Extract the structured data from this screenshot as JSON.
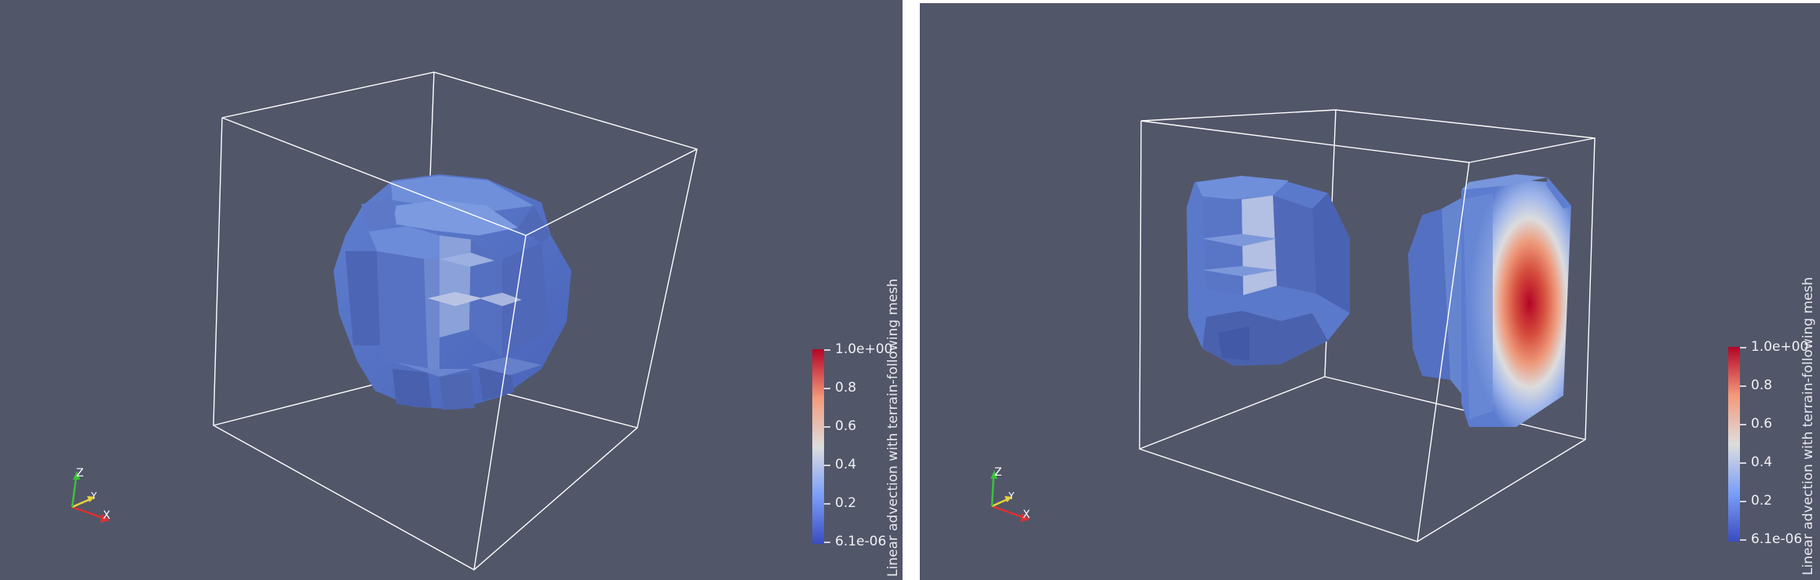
{
  "views": [
    {
      "id": "left",
      "scalar_bar": {
        "title": "Linear advection with terrain-following mesh",
        "ticks": [
          "1.0e+00",
          "0.8",
          "0.6",
          "0.4",
          "0.2",
          "6.1e-06"
        ]
      },
      "orientation_axes": {
        "x": "X",
        "y": "Y",
        "z": "Z"
      }
    },
    {
      "id": "right",
      "scalar_bar": {
        "title": "Linear advection with terrain-following mesh",
        "ticks": [
          "1.0e+00",
          "0.8",
          "0.6",
          "0.4",
          "0.2",
          "6.1e-06"
        ]
      },
      "orientation_axes": {
        "x": "X",
        "y": "Y",
        "z": "Z"
      }
    }
  ],
  "colors": {
    "background": "#525669",
    "outline": "#ffffff",
    "colormap_low": "#3b4cc0",
    "colormap_mid": "#dddddd",
    "colormap_high": "#b40426",
    "axis_x": "#e03030",
    "axis_y": "#e8d23a",
    "axis_z": "#3ac23a"
  },
  "colormap": "Cool to Warm"
}
